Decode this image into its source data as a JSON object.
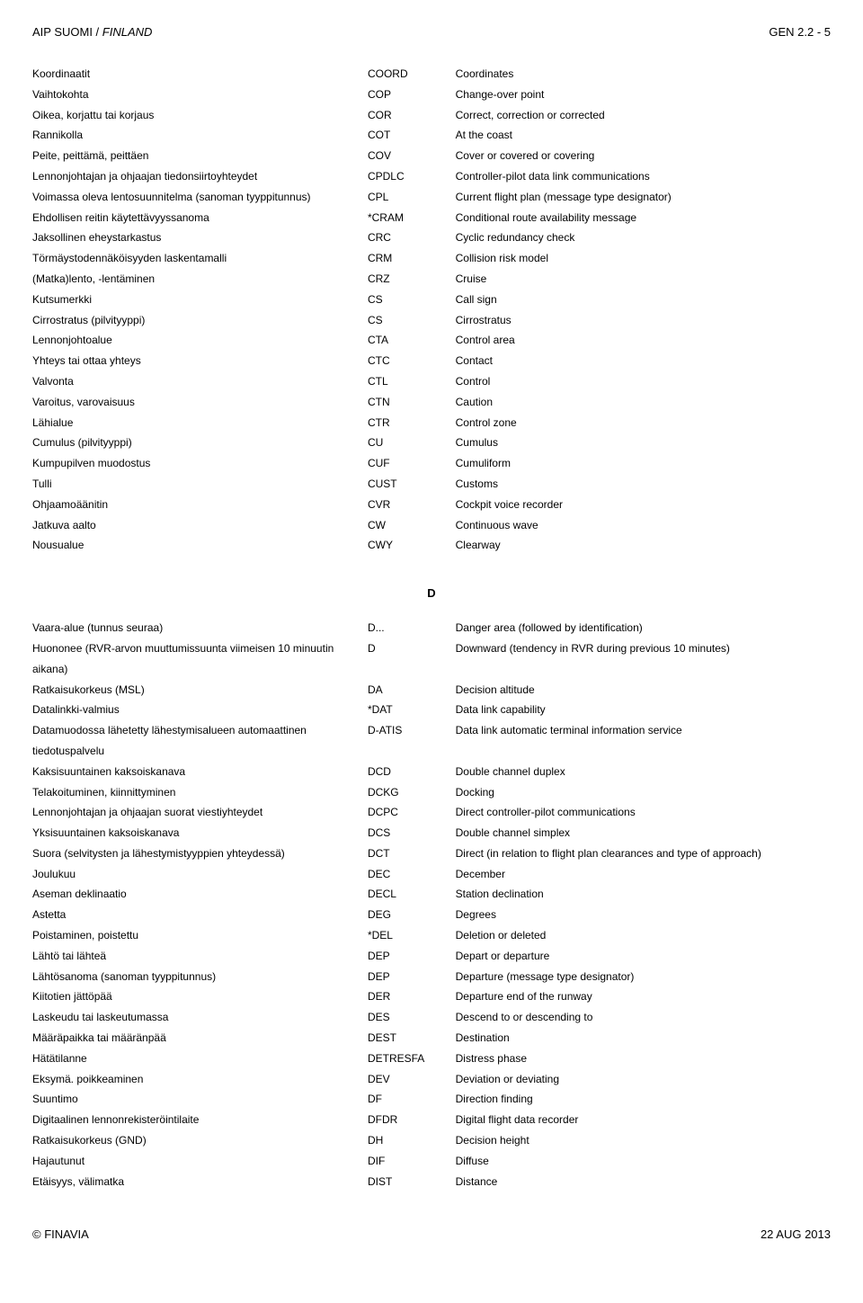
{
  "header": {
    "left_plain": "AIP SUOMI / ",
    "left_italic": "FINLAND",
    "right": "GEN 2.2 - 5"
  },
  "section1_rows": [
    {
      "fi": "Koordinaatit",
      "code": "COORD",
      "en": "Coordinates"
    },
    {
      "fi": "Vaihtokohta",
      "code": "COP",
      "en": "Change-over point"
    },
    {
      "fi": "Oikea, korjattu tai korjaus",
      "code": "COR",
      "en": "Correct, correction or corrected"
    },
    {
      "fi": "Rannikolla",
      "code": "COT",
      "en": "At the coast"
    },
    {
      "fi": "Peite, peittämä, peittäen",
      "code": "COV",
      "en": "Cover or covered or covering"
    },
    {
      "fi": "Lennonjohtajan ja ohjaajan tiedonsiirtoyhteydet",
      "code": "CPDLC",
      "en": "Controller-pilot data link communications"
    },
    {
      "fi": "Voimassa oleva lentosuunnitelma (sanoman tyyppitunnus)",
      "code": "CPL",
      "en": "Current flight plan (message type designator)"
    },
    {
      "fi": "Ehdollisen reitin käytettävyyssanoma",
      "code": "*CRAM",
      "en": "Conditional route availability message"
    },
    {
      "fi": "Jaksollinen eheystarkastus",
      "code": "CRC",
      "en": "Cyclic redundancy check"
    },
    {
      "fi": "Törmäystodennäköisyyden laskentamalli",
      "code": "CRM",
      "en": "Collision risk model"
    },
    {
      "fi": "(Matka)lento, -lentäminen",
      "code": "CRZ",
      "en": "Cruise"
    },
    {
      "fi": "Kutsumerkki",
      "code": "CS",
      "en": "Call sign"
    },
    {
      "fi": "Cirrostratus (pilvityyppi)",
      "code": "CS",
      "en": "Cirrostratus"
    },
    {
      "fi": "Lennonjohtoalue",
      "code": "CTA",
      "en": "Control area"
    },
    {
      "fi": "Yhteys tai ottaa yhteys",
      "code": "CTC",
      "en": "Contact"
    },
    {
      "fi": "Valvonta",
      "code": "CTL",
      "en": "Control"
    },
    {
      "fi": "Varoitus, varovaisuus",
      "code": "CTN",
      "en": "Caution"
    },
    {
      "fi": "Lähialue",
      "code": "CTR",
      "en": "Control zone"
    },
    {
      "fi": "Cumulus (pilvityyppi)",
      "code": "CU",
      "en": "Cumulus"
    },
    {
      "fi": "Kumpupilven muodostus",
      "code": "CUF",
      "en": "Cumuliform"
    },
    {
      "fi": "Tulli",
      "code": "CUST",
      "en": "Customs"
    },
    {
      "fi": "Ohjaamoäänitin",
      "code": "CVR",
      "en": "Cockpit voice recorder"
    },
    {
      "fi": "Jatkuva aalto",
      "code": "CW",
      "en": "Continuous wave"
    },
    {
      "fi": "Nousualue",
      "code": "CWY",
      "en": "Clearway"
    }
  ],
  "section2_letter": "D",
  "section2_rows": [
    {
      "fi": "Vaara-alue (tunnus seuraa)",
      "code": "D...",
      "en": "Danger area (followed by identification)"
    },
    {
      "fi": "Huononee (RVR-arvon muuttumissuunta viimeisen 10 minuutin aikana)",
      "code": "D",
      "en": "Downward (tendency in RVR during previous 10 minutes)"
    },
    {
      "fi": "Ratkaisukorkeus (MSL)",
      "code": "DA",
      "en": "Decision altitude"
    },
    {
      "fi": "Datalinkki-valmius",
      "code": "*DAT",
      "en": "Data link capability"
    },
    {
      "fi": "Datamuodossa lähetetty lähestymisalueen automaattinen tiedotuspalvelu",
      "code": "D-ATIS",
      "en": "Data link automatic terminal information service"
    },
    {
      "fi": "Kaksisuuntainen kaksoiskanava",
      "code": "DCD",
      "en": "Double channel duplex"
    },
    {
      "fi": "Telakoituminen, kiinnittyminen",
      "code": "DCKG",
      "en": "Docking"
    },
    {
      "fi": "Lennonjohtajan ja ohjaajan suorat viestiyhteydet",
      "code": "DCPC",
      "en": "Direct controller-pilot communications"
    },
    {
      "fi": "Yksisuuntainen kaksoiskanava",
      "code": "DCS",
      "en": "Double channel simplex"
    },
    {
      "fi": "Suora (selvitysten ja lähestymistyyppien yhteydessä)",
      "code": "DCT",
      "en": "Direct (in relation to flight plan clearances and type of approach)"
    },
    {
      "fi": "Joulukuu",
      "code": "DEC",
      "en": "December"
    },
    {
      "fi": "Aseman deklinaatio",
      "code": "DECL",
      "en": "Station declination"
    },
    {
      "fi": "Astetta",
      "code": "DEG",
      "en": "Degrees"
    },
    {
      "fi": "Poistaminen, poistettu",
      "code": "*DEL",
      "en": "Deletion or deleted"
    },
    {
      "fi": "Lähtö tai lähteä",
      "code": "DEP",
      "en": "Depart or departure"
    },
    {
      "fi": "Lähtösanoma (sanoman tyyppitunnus)",
      "code": "DEP",
      "en": "Departure (message type designator)"
    },
    {
      "fi": "Kiitotien jättöpää",
      "code": "DER",
      "en": "Departure end of the runway"
    },
    {
      "fi": "Laskeudu tai laskeutumassa",
      "code": "DES",
      "en": "Descend to or descending to"
    },
    {
      "fi": "Määräpaikka tai määränpää",
      "code": "DEST",
      "en": "Destination"
    },
    {
      "fi": "Hätätilanne",
      "code": "DETRESFA",
      "en": "Distress phase"
    },
    {
      "fi": "Eksymä. poikkeaminen",
      "code": "DEV",
      "en": "Deviation or deviating"
    },
    {
      "fi": "Suuntimo",
      "code": "DF",
      "en": "Direction finding"
    },
    {
      "fi": "Digitaalinen lennonrekisteröintilaite",
      "code": "DFDR",
      "en": "Digital flight data recorder"
    },
    {
      "fi": "Ratkaisukorkeus (GND)",
      "code": "DH",
      "en": "Decision height"
    },
    {
      "fi": "Hajautunut",
      "code": "DIF",
      "en": "Diffuse"
    },
    {
      "fi": "Etäisyys, välimatka",
      "code": "DIST",
      "en": "Distance"
    }
  ],
  "footer": {
    "left": "© FINAVIA",
    "right": "22 AUG 2013"
  }
}
